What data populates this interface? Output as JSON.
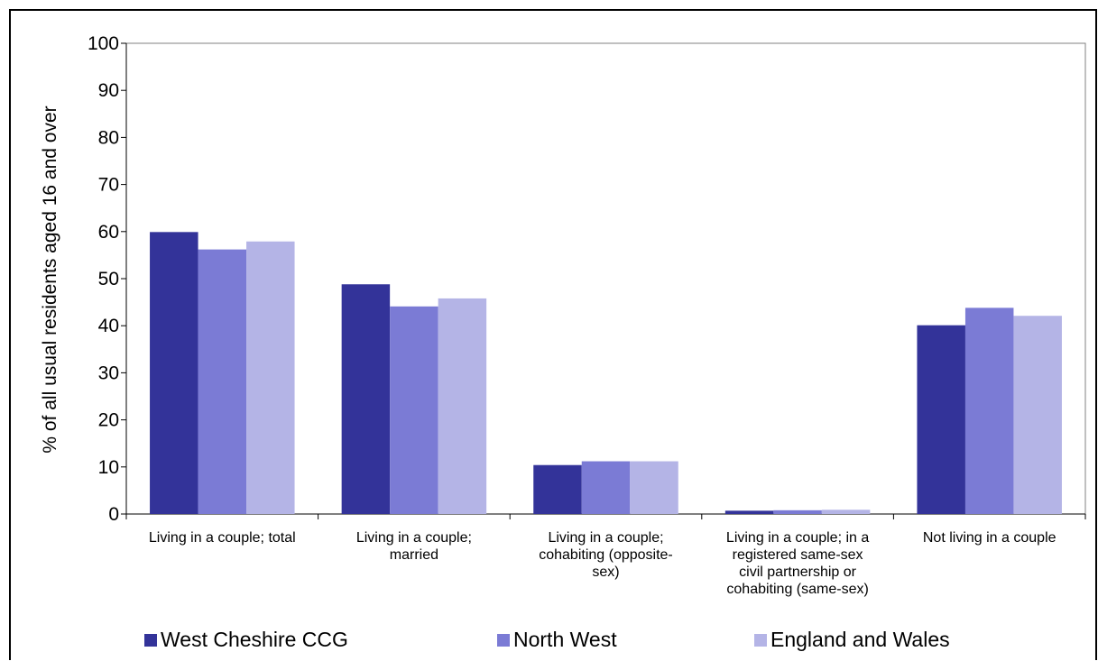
{
  "chart_data": {
    "type": "bar",
    "title": "",
    "xlabel": "",
    "ylabel": "% of all usual residents aged 16 and over",
    "ylim": [
      0,
      100
    ],
    "yticks": [
      0,
      10,
      20,
      30,
      40,
      50,
      60,
      70,
      80,
      90,
      100
    ],
    "grid": false,
    "legend_position": "bottom",
    "categories": [
      [
        "Living in a couple; total"
      ],
      [
        "Living in a couple;",
        "married"
      ],
      [
        "Living in a couple;",
        "cohabiting (opposite-",
        "sex)"
      ],
      [
        "Living in a couple; in a",
        "registered same-sex",
        "civil partnership or",
        "cohabiting (same-sex)"
      ],
      [
        "Not living in a couple"
      ]
    ],
    "series": [
      {
        "name": "West Cheshire CCG",
        "color": "#333399",
        "values": [
          59.9,
          48.8,
          10.4,
          0.7,
          40.1
        ]
      },
      {
        "name": "North West",
        "color": "#7b7bd5",
        "values": [
          56.2,
          44.1,
          11.2,
          0.8,
          43.8
        ]
      },
      {
        "name": "England and Wales",
        "color": "#b4b4e6",
        "values": [
          57.9,
          45.8,
          11.2,
          0.9,
          42.1
        ]
      }
    ]
  }
}
